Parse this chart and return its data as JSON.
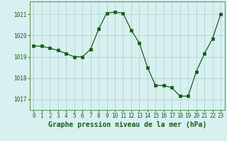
{
  "x": [
    0,
    1,
    2,
    3,
    4,
    5,
    6,
    7,
    8,
    9,
    10,
    11,
    12,
    13,
    14,
    15,
    16,
    17,
    18,
    19,
    20,
    21,
    22,
    23
  ],
  "y": [
    1019.5,
    1019.5,
    1019.4,
    1019.3,
    1019.15,
    1019.0,
    1019.0,
    1019.35,
    1020.3,
    1021.05,
    1021.1,
    1021.05,
    1020.25,
    1019.65,
    1018.5,
    1017.65,
    1017.65,
    1017.55,
    1017.15,
    1017.15,
    1018.3,
    1019.15,
    1019.85,
    1021.0
  ],
  "line_color": "#1a5c1a",
  "marker": "s",
  "marker_size": 2.2,
  "bg_color": "#d8f0f0",
  "grid_color": "#b0d4d4",
  "xlabel": "Graphe pression niveau de la mer (hPa)",
  "ylim": [
    1016.5,
    1021.6
  ],
  "xlim": [
    -0.5,
    23.5
  ],
  "yticks": [
    1017,
    1018,
    1019,
    1020,
    1021
  ],
  "xticks": [
    0,
    1,
    2,
    3,
    4,
    5,
    6,
    7,
    8,
    9,
    10,
    11,
    12,
    13,
    14,
    15,
    16,
    17,
    18,
    19,
    20,
    21,
    22,
    23
  ],
  "tick_fontsize": 5.5,
  "xlabel_fontsize": 7.0,
  "text_color": "#1a5c1a",
  "border_color": "#5c9c5c",
  "linewidth": 0.9
}
